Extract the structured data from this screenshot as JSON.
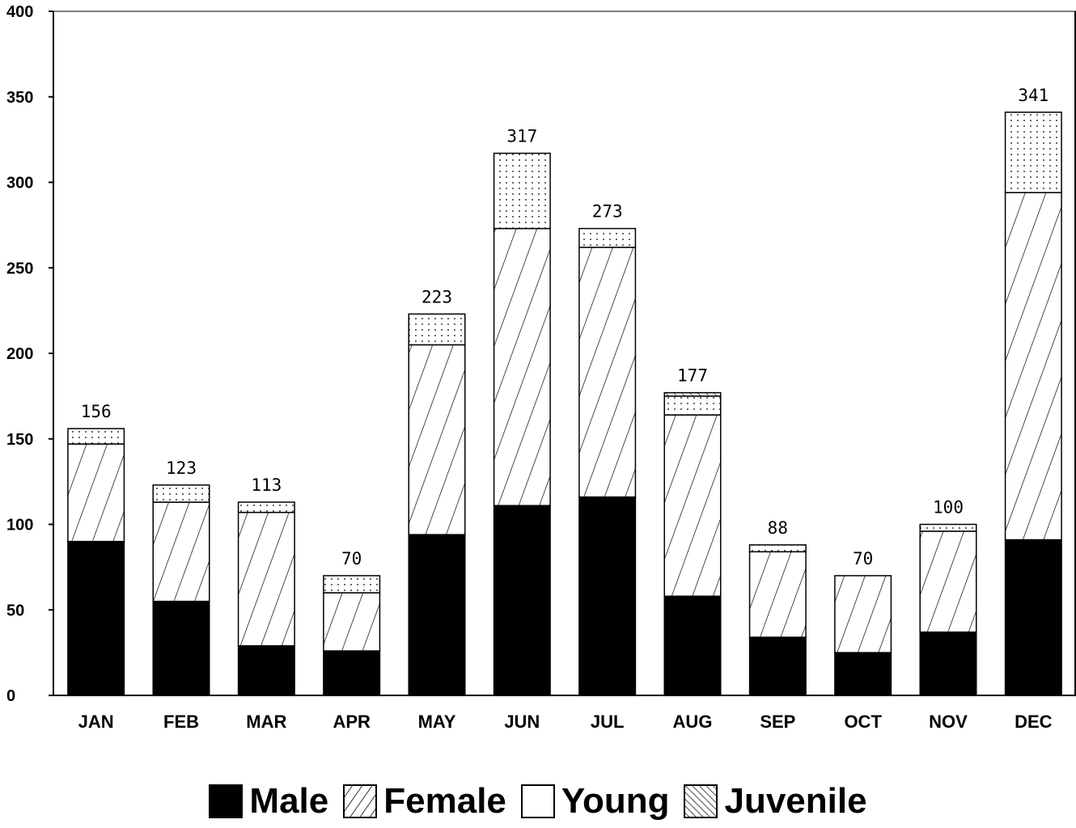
{
  "chart_data": {
    "type": "bar",
    "stacked": true,
    "categories": [
      "JAN",
      "FEB",
      "MAR",
      "APR",
      "MAY",
      "JUN",
      "JUL",
      "AUG",
      "SEP",
      "OCT",
      "NOV",
      "DEC"
    ],
    "series": [
      {
        "name": "Male",
        "values": [
          90,
          55,
          29,
          26,
          94,
          111,
          116,
          58,
          34,
          25,
          37,
          91
        ]
      },
      {
        "name": "Female",
        "values": [
          57,
          58,
          78,
          34,
          111,
          162,
          146,
          106,
          50,
          45,
          59,
          203
        ]
      },
      {
        "name": "Young",
        "values": [
          9,
          10,
          6,
          10,
          18,
          44,
          11,
          11,
          4,
          0,
          4,
          47
        ]
      },
      {
        "name": "Juvenile",
        "values": [
          0,
          0,
          0,
          0,
          0,
          0,
          0,
          2,
          0,
          0,
          0,
          0
        ]
      }
    ],
    "totals": [
      156,
      123,
      113,
      70,
      223,
      317,
      273,
      177,
      88,
      70,
      100,
      341
    ],
    "total_labels": [
      "156",
      "123",
      "113",
      "70",
      "223",
      "317",
      "273",
      "177",
      "88",
      "70",
      "100",
      "341"
    ],
    "y_ticks": [
      "0",
      "50",
      "100",
      "150",
      "200",
      "250",
      "300",
      "350",
      "400"
    ],
    "ylim": [
      0,
      400
    ],
    "legend": [
      "Male",
      "Female",
      "Young",
      "Juvenile"
    ],
    "legend_position": "bottom-center",
    "colors": {
      "male": "#000000",
      "female": "#000000",
      "young": "#000000",
      "juvenile": "#000000"
    }
  }
}
